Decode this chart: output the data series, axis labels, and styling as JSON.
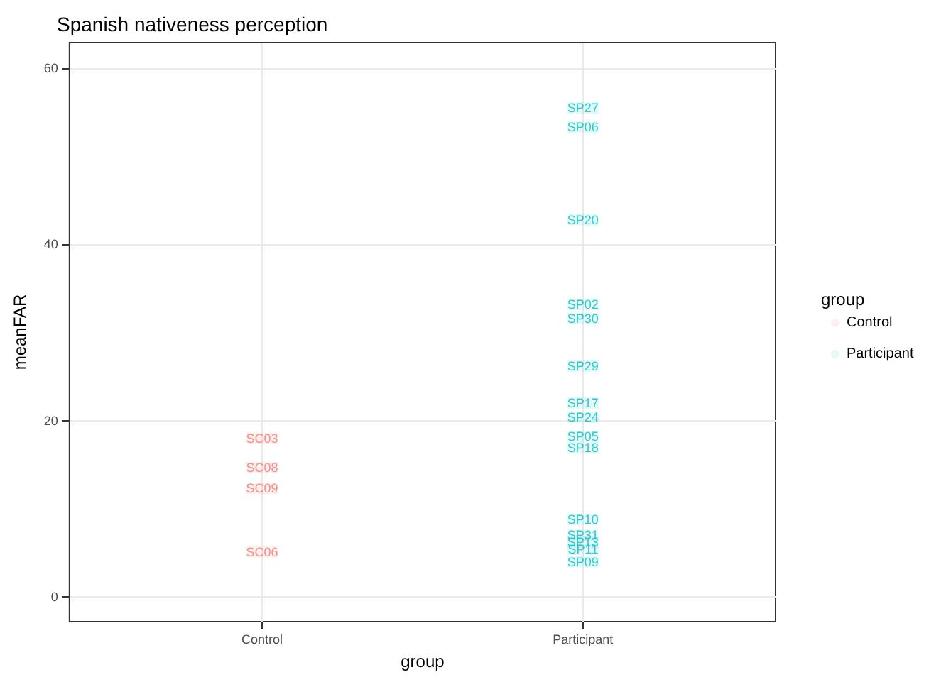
{
  "chart_data": {
    "type": "scatter",
    "title": "Spanish nativeness perception",
    "xlabel": "group",
    "ylabel": "meanFAR",
    "legend_title": "group",
    "categories": [
      "Control",
      "Participant"
    ],
    "series": [
      {
        "name": "Control",
        "color": "#f8766d",
        "x": [
          "Control",
          "Control",
          "Control",
          "Control"
        ],
        "values": [
          18.0,
          14.7,
          12.3,
          5.1
        ],
        "value_labels": [
          "SC03",
          "SC08",
          "SC09",
          "SC06"
        ]
      },
      {
        "name": "Participant",
        "color": "#00bfc4",
        "x": [
          "Participant",
          "Participant",
          "Participant",
          "Participant",
          "Participant",
          "Participant",
          "Participant",
          "Participant",
          "Participant",
          "Participant",
          "Participant",
          "Participant",
          "Participant",
          "Participant",
          "Participant"
        ],
        "values": [
          55.5,
          53.3,
          42.8,
          33.2,
          31.6,
          26.2,
          22.0,
          20.4,
          18.2,
          16.9,
          8.8,
          7.0,
          6.2,
          5.4,
          4.0
        ],
        "value_labels": [
          "SP27",
          "SP06",
          "SP20",
          "SP02",
          "SP30",
          "SP29",
          "SP17",
          "SP24",
          "SP05",
          "SP18",
          "SP10",
          "SP31",
          "SP13",
          "SP11",
          "SP09"
        ]
      }
    ],
    "ylim": [
      -2.8,
      62.9
    ],
    "yticks": [
      0,
      20,
      40,
      60
    ],
    "grid": true,
    "legend": "right"
  }
}
